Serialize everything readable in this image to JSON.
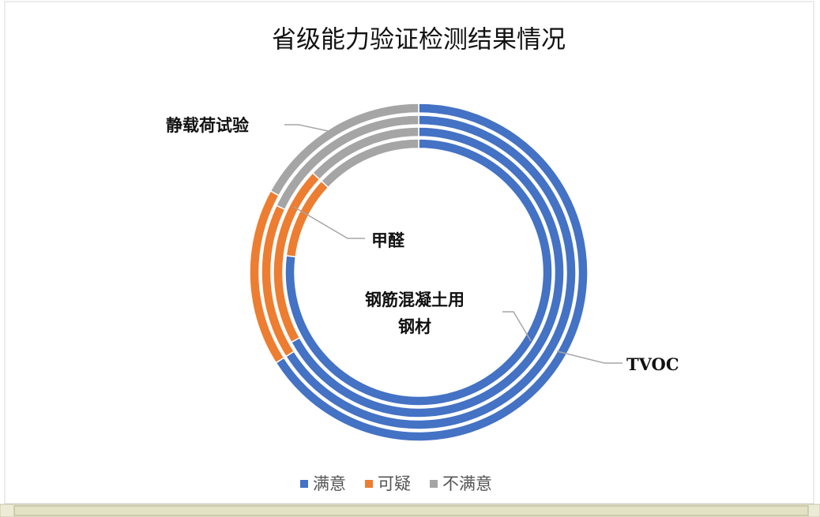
{
  "chart_data": {
    "type": "doughnut",
    "title": "省级能力验证检测结果情况",
    "categories": [
      "钢筋混凝土用钢材",
      "甲醛",
      "TVOC",
      "静载荷试验"
    ],
    "series": [
      {
        "name": "满意",
        "color": "#4472c4",
        "values": [
          77,
          67,
          66,
          66
        ]
      },
      {
        "name": "可疑",
        "color": "#ed7d31",
        "values": [
          10,
          20,
          16,
          17
        ]
      },
      {
        "name": "不满意",
        "color": "#a5a5a5",
        "values": [
          13,
          13,
          18,
          17
        ]
      }
    ],
    "legend": "bottom"
  }
}
